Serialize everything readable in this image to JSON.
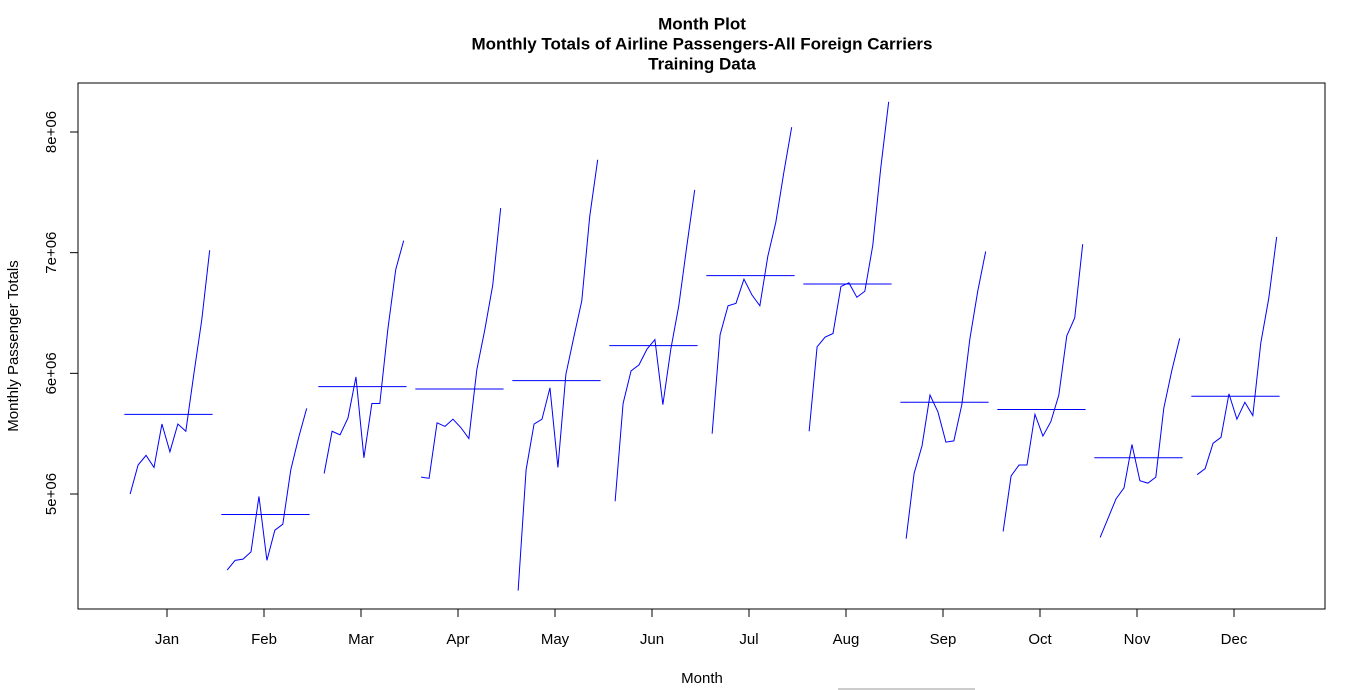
{
  "chart_data": {
    "type": "monthplot",
    "title": [
      "Month Plot",
      "Monthly Totals of Airline Passengers-All Foreign Carriers",
      "Training Data"
    ],
    "x_label": "Month",
    "y_label": "Monthly Passenger Totals",
    "color": "#0000ff",
    "categories": [
      "Jan",
      "Feb",
      "Mar",
      "Apr",
      "May",
      "Jun",
      "Jul",
      "Aug",
      "Sep",
      "Oct",
      "Nov",
      "Dec"
    ],
    "values": [
      [
        5000000,
        5240000,
        5320000,
        5220000,
        5580000,
        5350000,
        5580000,
        5520000,
        5990000,
        6440000,
        7020000
      ],
      [
        4370000,
        4450000,
        4460000,
        4520000,
        4980000,
        4450000,
        4700000,
        4750000,
        5200000,
        5470000,
        5710000
      ],
      [
        5170000,
        5520000,
        5490000,
        5630000,
        5970000,
        5300000,
        5750000,
        5750000,
        6360000,
        6860000,
        7100000
      ],
      [
        5140000,
        5130000,
        5590000,
        5560000,
        5620000,
        5550000,
        5460000,
        6030000,
        6360000,
        6730000,
        7370000
      ],
      [
        4200000,
        5200000,
        5580000,
        5620000,
        5880000,
        5220000,
        5990000,
        6300000,
        6600000,
        7300000,
        7770000
      ],
      [
        4940000,
        5750000,
        6020000,
        6070000,
        6200000,
        6280000,
        5740000,
        6200000,
        6560000,
        7050000,
        7520000
      ],
      [
        5500000,
        6320000,
        6560000,
        6580000,
        6780000,
        6650000,
        6560000,
        6970000,
        7250000,
        7660000,
        8040000
      ],
      [
        5520000,
        6220000,
        6300000,
        6330000,
        6720000,
        6750000,
        6630000,
        6680000,
        7060000,
        7700000,
        8250000
      ],
      [
        4630000,
        5170000,
        5400000,
        5820000,
        5680000,
        5430000,
        5440000,
        5740000,
        6280000,
        6680000,
        7010000
      ],
      [
        4690000,
        5150000,
        5240000,
        5240000,
        5660000,
        5480000,
        5600000,
        5820000,
        6310000,
        6460000,
        7070000
      ],
      [
        4640000,
        4800000,
        4960000,
        5050000,
        5410000,
        5110000,
        5090000,
        5140000,
        5710000,
        6020000,
        6290000
      ],
      [
        5160000,
        5210000,
        5420000,
        5470000,
        5830000,
        5620000,
        5760000,
        5650000,
        6250000,
        6620000,
        7130000
      ]
    ],
    "means": [
      5660000,
      4830000,
      5890000,
      5870000,
      5940000,
      6230000,
      6810000,
      6740000,
      5760000,
      5700000,
      5300000,
      5810000
    ],
    "ylim": [
      4047000,
      8406000
    ],
    "yticks": [
      {
        "value": 5000000,
        "label": "5e+06"
      },
      {
        "value": 6000000,
        "label": "6e+06"
      },
      {
        "value": 7000000,
        "label": "7e+06"
      },
      {
        "value": 8000000,
        "label": "8e+06"
      }
    ]
  }
}
